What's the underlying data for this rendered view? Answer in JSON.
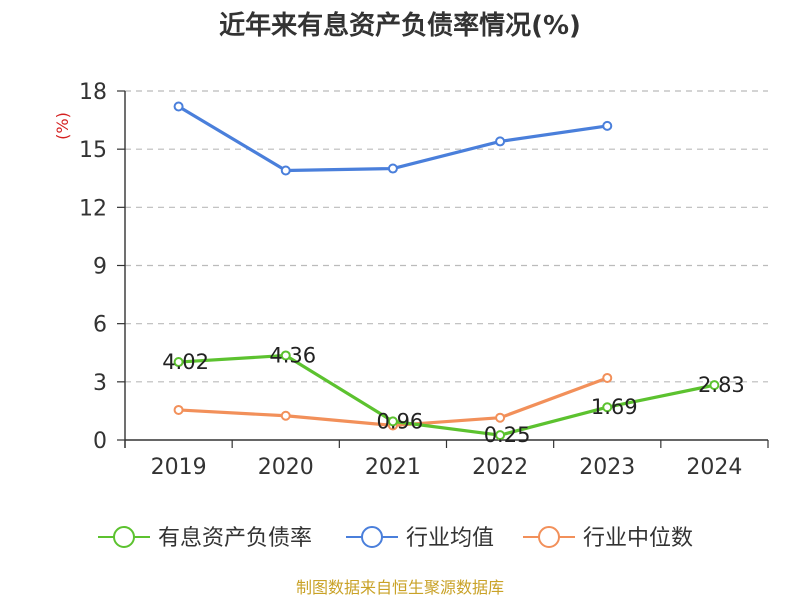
{
  "source": "制图数据来自恒生聚源数据库",
  "colors": {
    "source": "#c9a227",
    "unit": "#d42020",
    "grid": "#bbbbbb",
    "axis": "#333333"
  },
  "chart_data": {
    "type": "line",
    "title": "近年来有息资产负债率情况(%)",
    "ylabel": "(%)",
    "categories": [
      "2019",
      "2020",
      "2021",
      "2022",
      "2023",
      "2024"
    ],
    "ylim": [
      0,
      18
    ],
    "yticks": [
      0,
      3,
      6,
      9,
      12,
      15,
      18
    ],
    "grid": true,
    "legend_position": "bottom",
    "series": [
      {
        "name": "有息资产负债率",
        "color": "#5cc22f",
        "values": [
          4.02,
          4.36,
          0.96,
          0.25,
          1.69,
          2.83
        ],
        "labels": [
          "4.02",
          "4.36",
          "0.96",
          "0.25",
          "1.69",
          "2.83"
        ]
      },
      {
        "name": "行业均值",
        "color": "#4a7fdb",
        "values": [
          17.2,
          13.9,
          14.0,
          15.4,
          16.2,
          null
        ]
      },
      {
        "name": "行业中位数",
        "color": "#f2905a",
        "values": [
          1.55,
          1.25,
          0.75,
          1.15,
          3.2,
          null
        ]
      }
    ]
  }
}
